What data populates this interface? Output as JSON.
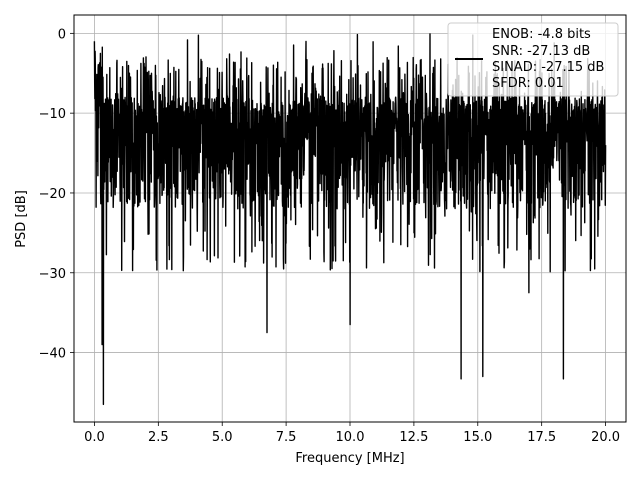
{
  "chart_data": {
    "type": "line",
    "title": "",
    "xlabel": "Frequency [MHz]",
    "ylabel": "PSD [dB]",
    "xlim": [
      -0.8,
      20.8
    ],
    "ylim": [
      -48.7,
      2.3
    ],
    "x_ticks": [
      0.0,
      2.5,
      5.0,
      7.5,
      10.0,
      12.5,
      15.0,
      17.5,
      20.0
    ],
    "x_tick_labels": [
      "0.0",
      "2.5",
      "5.0",
      "7.5",
      "10.0",
      "12.5",
      "15.0",
      "17.5",
      "20.0"
    ],
    "y_ticks": [
      0,
      -10,
      -20,
      -30,
      -40
    ],
    "y_tick_labels": [
      "0",
      "−10",
      "−20",
      "−30",
      "−40"
    ],
    "grid": true,
    "legend_position": "top-right",
    "line_color": "#000000",
    "series": [
      {
        "style": "noisy PSD trace",
        "x_range": [
          0.0,
          20.0
        ],
        "upper_envelope_db": -5,
        "typical_range_db": [
          -26,
          -3
        ],
        "peak_max_db": 0,
        "min_db": -46.5,
        "deep_nulls": [
          {
            "x": 0.35,
            "y": -46.5
          },
          {
            "x": 0.3,
            "y": -39
          },
          {
            "x": 6.75,
            "y": -37.5
          },
          {
            "x": 10.0,
            "y": -36.5
          },
          {
            "x": 14.35,
            "y": -43.3
          },
          {
            "x": 15.2,
            "y": -43
          },
          {
            "x": 18.35,
            "y": -43.3
          },
          {
            "x": 17.0,
            "y": -32.5
          }
        ]
      }
    ],
    "legend": {
      "lines": [
        "ENOB: -4.8 bits",
        "SNR: -27.13 dB",
        "SINAD: -27.15 dB",
        "SFDR: 0.01"
      ]
    }
  }
}
